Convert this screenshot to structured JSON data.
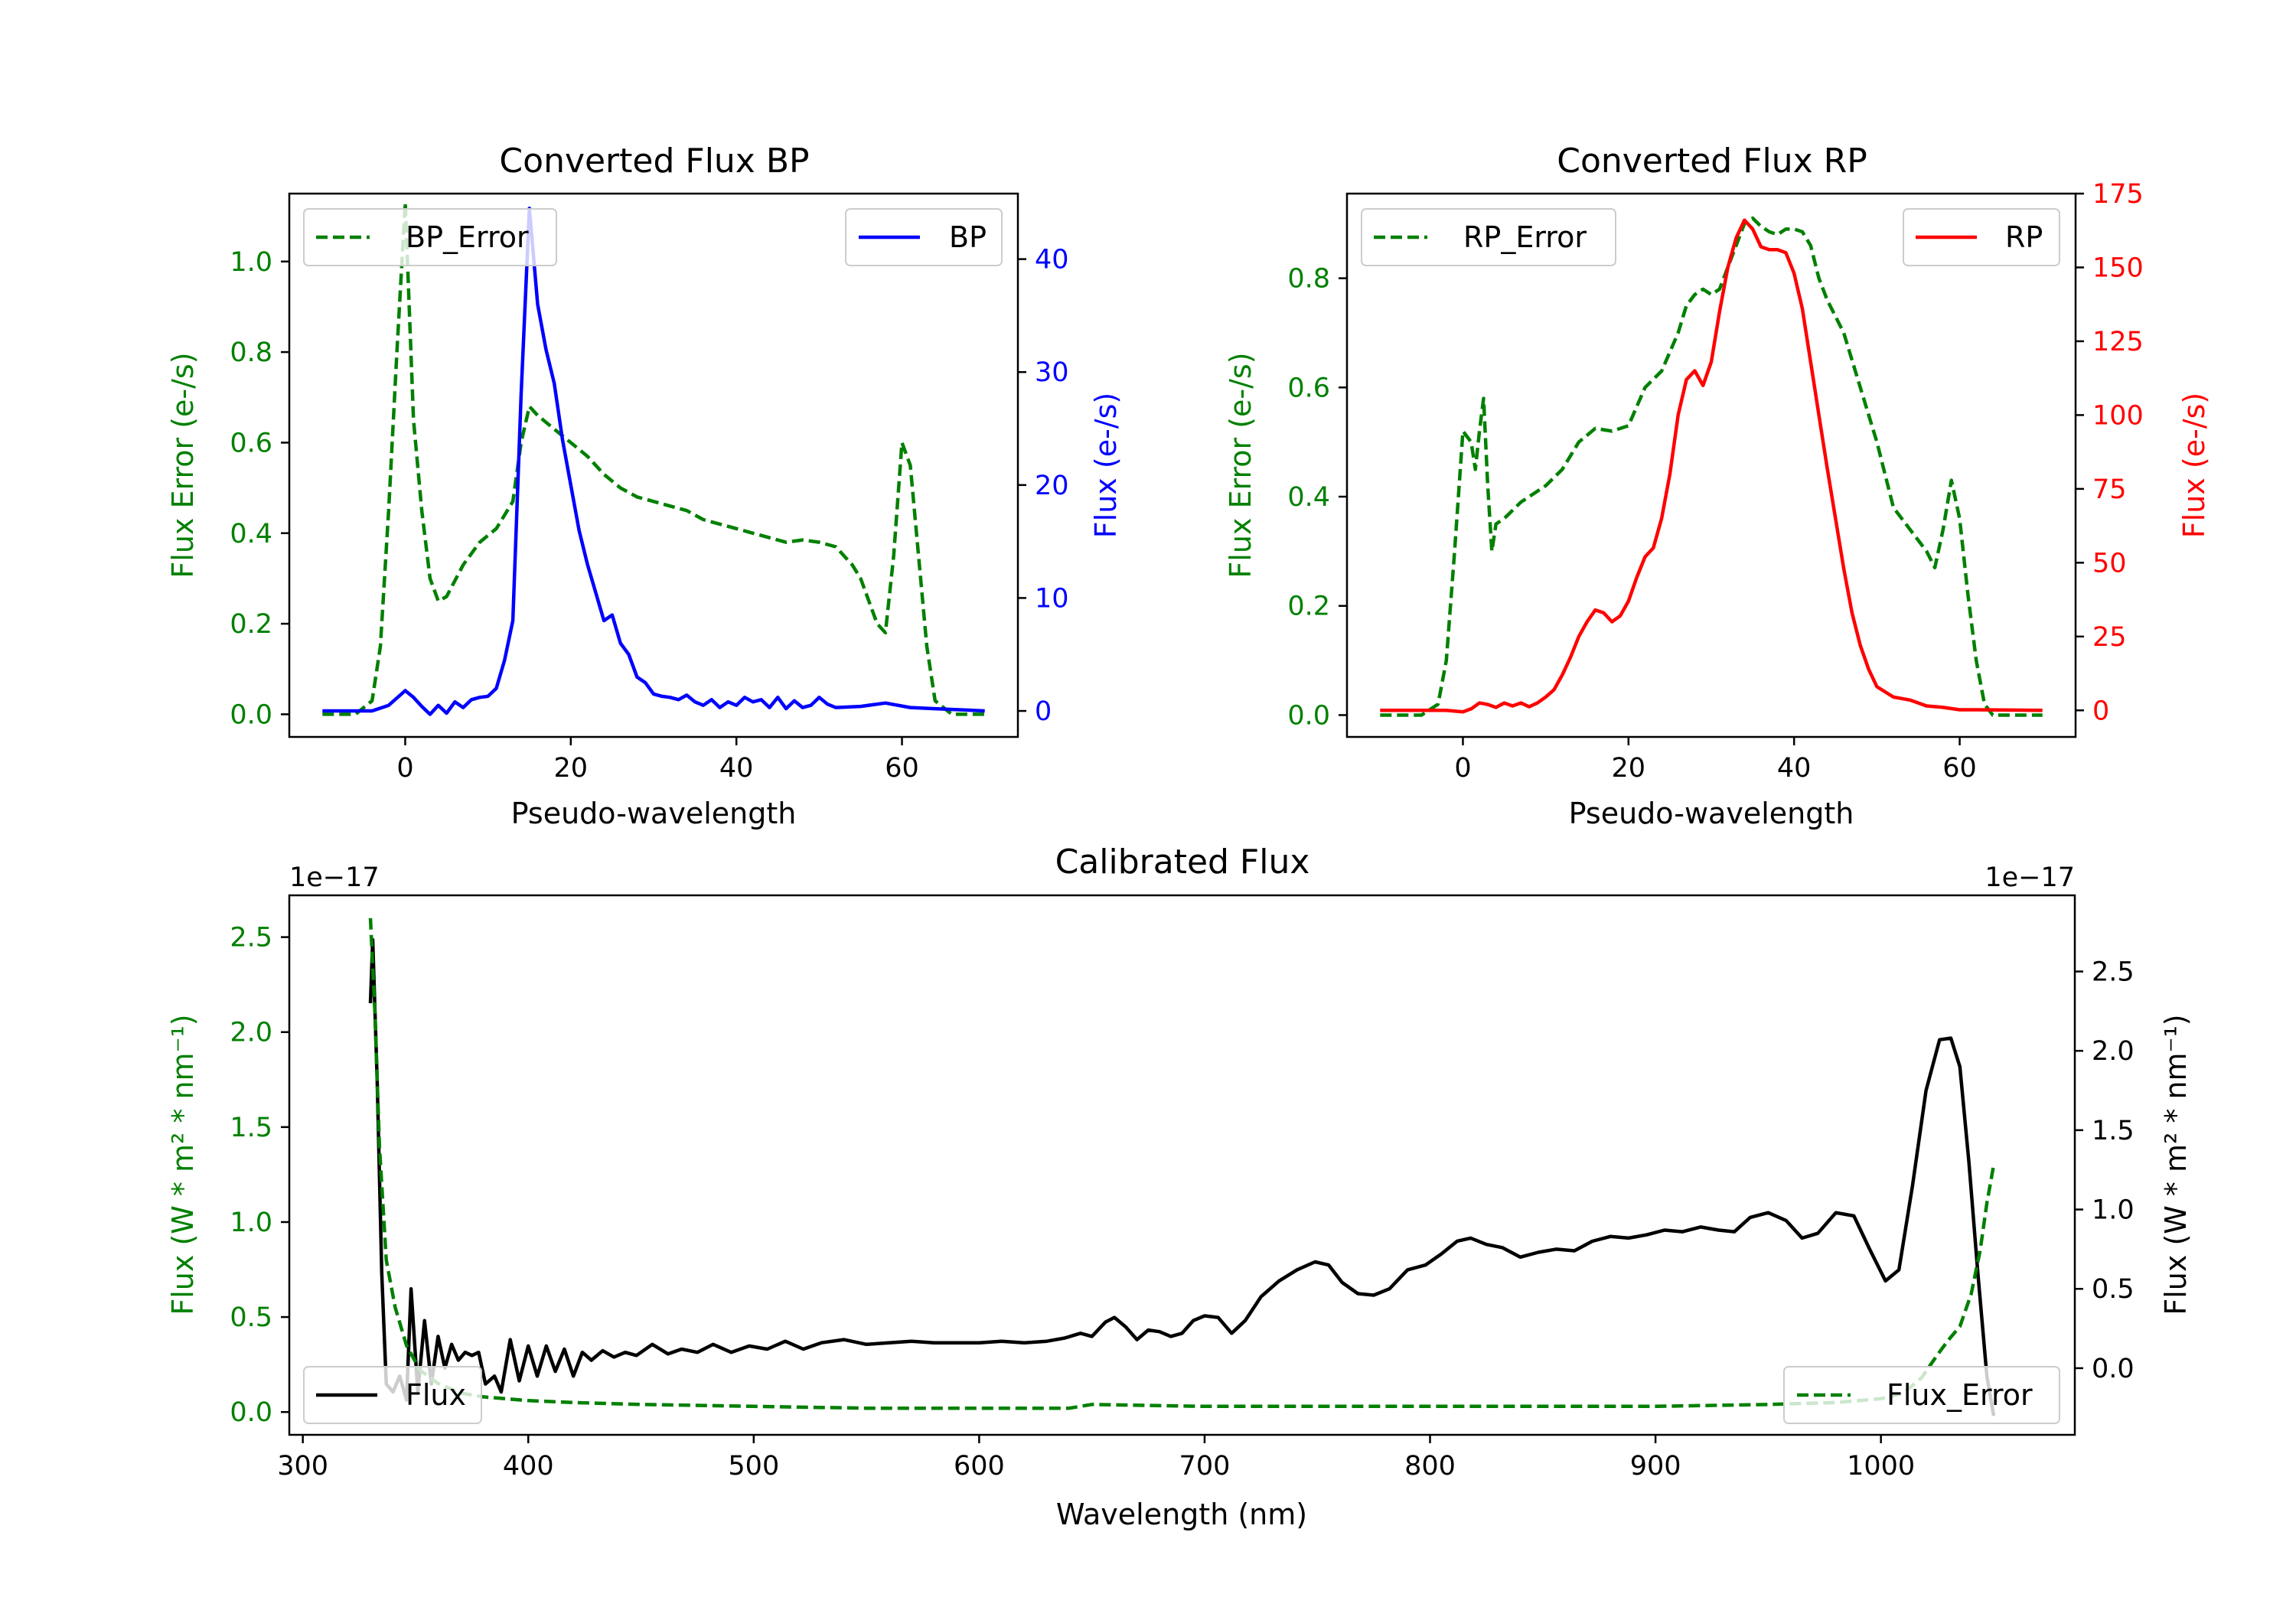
{
  "chart_data": [
    {
      "type": "line",
      "title": "Converted Flux BP",
      "xlabel": "Pseudo-wavelength",
      "xlim": [
        -14,
        74
      ],
      "xticks": [
        0,
        20,
        40,
        60
      ],
      "left_axis": {
        "label": "Flux Error (e-/s)",
        "color": "#008000",
        "ylim": [
          -0.05,
          1.15
        ],
        "ticks": [
          "0.0",
          "0.2",
          "0.4",
          "0.6",
          "0.8",
          "1.0"
        ],
        "tick_values": [
          0,
          0.2,
          0.4,
          0.6,
          0.8,
          1.0
        ]
      },
      "right_axis": {
        "label": "Flux (e-/s)",
        "color": "#0000ff",
        "ylim": [
          -2.3,
          45.8
        ],
        "ticks": [
          "0",
          "10",
          "20",
          "30",
          "40"
        ],
        "tick_values": [
          0,
          10,
          20,
          30,
          40
        ]
      },
      "series": [
        {
          "name": "BP_Error",
          "axis": "left",
          "color": "#008000",
          "style": "dashed",
          "legend": "top-left",
          "x": [
            -10,
            -6,
            -4,
            -3,
            -2,
            -1,
            0,
            1,
            2,
            3,
            4,
            5,
            7,
            9,
            11,
            13,
            14,
            15,
            16,
            18,
            20,
            22,
            24,
            26,
            28,
            30,
            32,
            34,
            36,
            38,
            40,
            42,
            44,
            46,
            48,
            50,
            52,
            54,
            55,
            56,
            57,
            58,
            59,
            60,
            61,
            62,
            63,
            64,
            66,
            70
          ],
          "y": [
            0.0,
            0.0,
            0.03,
            0.15,
            0.45,
            0.8,
            1.13,
            0.65,
            0.45,
            0.3,
            0.25,
            0.26,
            0.33,
            0.38,
            0.41,
            0.47,
            0.6,
            0.68,
            0.66,
            0.63,
            0.6,
            0.57,
            0.53,
            0.5,
            0.48,
            0.47,
            0.46,
            0.45,
            0.43,
            0.42,
            0.41,
            0.4,
            0.39,
            0.38,
            0.385,
            0.38,
            0.37,
            0.33,
            0.3,
            0.25,
            0.2,
            0.18,
            0.35,
            0.6,
            0.55,
            0.35,
            0.15,
            0.03,
            0.0,
            0.0
          ]
        },
        {
          "name": "BP",
          "axis": "right",
          "color": "#0000ff",
          "style": "solid",
          "legend": "top-right",
          "x": [
            -10,
            -4,
            -2,
            0,
            1,
            2,
            3,
            4,
            5,
            6,
            7,
            8,
            9,
            10,
            11,
            12,
            13,
            14,
            15,
            16,
            17,
            18,
            19,
            20,
            21,
            22,
            23,
            24,
            25,
            26,
            27,
            28,
            29,
            30,
            31,
            32,
            33,
            34,
            35,
            36,
            37,
            38,
            39,
            40,
            41,
            42,
            43,
            44,
            45,
            46,
            47,
            48,
            49,
            50,
            51,
            52,
            55,
            58,
            61,
            64,
            70
          ],
          "y": [
            0,
            0,
            0.5,
            1.8,
            1.2,
            0.4,
            -0.3,
            0.5,
            -0.2,
            0.8,
            0.3,
            1.0,
            1.2,
            1.3,
            2.0,
            4.5,
            8.0,
            28.0,
            44.5,
            36.0,
            32.0,
            29.0,
            24.0,
            20.0,
            16.0,
            13.0,
            10.5,
            8.0,
            8.5,
            6.0,
            5.0,
            3.0,
            2.5,
            1.5,
            1.3,
            1.2,
            1.0,
            1.4,
            0.8,
            0.5,
            1.0,
            0.3,
            0.8,
            0.5,
            1.2,
            0.8,
            1.0,
            0.3,
            1.2,
            0.2,
            0.9,
            0.3,
            0.5,
            1.2,
            0.6,
            0.3,
            0.4,
            0.7,
            0.3,
            0.2,
            0.0
          ]
        }
      ]
    },
    {
      "type": "line",
      "title": "Converted Flux RP",
      "xlabel": "Pseudo-wavelength",
      "xlim": [
        -14,
        74
      ],
      "xticks": [
        0,
        20,
        40,
        60
      ],
      "left_axis": {
        "label": "Flux Error (e-/s)",
        "color": "#008000",
        "ylim": [
          -0.04,
          0.955
        ],
        "ticks": [
          "0.0",
          "0.2",
          "0.4",
          "0.6",
          "0.8"
        ],
        "tick_values": [
          0,
          0.2,
          0.4,
          0.6,
          0.8
        ]
      },
      "right_axis": {
        "label": "Flux (e-/s)",
        "color": "#ff0000",
        "ylim": [
          -9,
          175
        ],
        "ticks": [
          "0",
          "25",
          "50",
          "75",
          "100",
          "125",
          "150",
          "175"
        ],
        "tick_values": [
          0,
          25,
          50,
          75,
          100,
          125,
          150,
          175
        ]
      },
      "series": [
        {
          "name": "RP_Error",
          "axis": "left",
          "color": "#008000",
          "style": "dashed",
          "legend": "top-left",
          "x": [
            -10,
            -5,
            -3,
            -2,
            -1,
            0,
            1,
            1.5,
            2,
            2.5,
            3,
            3.5,
            4,
            5,
            7,
            10,
            12,
            14,
            16,
            18,
            20,
            22,
            24,
            26,
            27,
            28,
            29,
            30,
            31,
            32,
            33,
            34,
            35,
            36,
            37,
            38,
            39,
            40,
            41,
            42,
            43,
            44,
            46,
            48,
            50,
            52,
            54,
            55,
            56,
            57,
            58,
            59,
            60,
            61,
            62,
            63,
            64,
            70
          ],
          "y": [
            0.0,
            0.0,
            0.02,
            0.1,
            0.3,
            0.52,
            0.5,
            0.45,
            0.52,
            0.58,
            0.42,
            0.3,
            0.35,
            0.36,
            0.39,
            0.42,
            0.45,
            0.5,
            0.525,
            0.52,
            0.53,
            0.6,
            0.63,
            0.7,
            0.75,
            0.77,
            0.78,
            0.77,
            0.78,
            0.82,
            0.86,
            0.9,
            0.91,
            0.895,
            0.885,
            0.88,
            0.89,
            0.89,
            0.885,
            0.86,
            0.8,
            0.76,
            0.7,
            0.6,
            0.5,
            0.38,
            0.34,
            0.32,
            0.3,
            0.27,
            0.34,
            0.43,
            0.36,
            0.22,
            0.1,
            0.02,
            0.0,
            0.0
          ]
        },
        {
          "name": "RP",
          "axis": "right",
          "color": "#ff0000",
          "style": "solid",
          "legend": "top-right",
          "x": [
            -10,
            -2,
            0,
            1,
            2,
            3,
            4,
            5,
            6,
            7,
            8,
            9,
            10,
            11,
            12,
            13,
            14,
            15,
            16,
            17,
            18,
            19,
            20,
            21,
            22,
            23,
            24,
            25,
            26,
            27,
            28,
            29,
            30,
            31,
            32,
            33,
            34,
            35,
            36,
            37,
            38,
            39,
            40,
            41,
            42,
            43,
            44,
            45,
            46,
            47,
            48,
            49,
            50,
            52,
            54,
            56,
            58,
            60,
            62,
            70
          ],
          "y": [
            0,
            0,
            -0.5,
            0.5,
            2.5,
            2.0,
            1.0,
            2.5,
            1.5,
            2.5,
            1.2,
            2.5,
            4.5,
            7.0,
            12,
            18,
            25,
            30,
            34,
            33,
            30,
            32,
            37,
            45,
            52,
            55,
            65,
            80,
            100,
            112,
            115,
            110,
            118,
            135,
            150,
            160,
            166,
            163,
            157,
            156,
            156,
            155,
            148,
            136,
            118,
            100,
            82,
            65,
            48,
            33,
            22,
            14,
            8,
            4.5,
            3.5,
            1.5,
            1.0,
            0.2,
            0.2,
            0.0
          ]
        }
      ]
    },
    {
      "type": "line",
      "title": "Calibrated Flux",
      "xlabel": "Wavelength (nm)",
      "xlim": [
        294,
        1086
      ],
      "xticks": [
        300,
        400,
        500,
        600,
        700,
        800,
        900,
        1000
      ],
      "left_axis": {
        "label": "Flux (W * m² * nm⁻¹)",
        "color": "#008000",
        "offset_label": "1e−17",
        "ylim": [
          -0.12,
          2.72
        ],
        "ticks": [
          "0.0",
          "0.5",
          "1.0",
          "1.5",
          "2.0",
          "2.5"
        ],
        "tick_values": [
          0,
          0.5,
          1.0,
          1.5,
          2.0,
          2.5
        ]
      },
      "right_axis": {
        "label": "Flux (W * m² * nm⁻¹)",
        "color": "#000000",
        "offset_label": "1e−17",
        "ylim": [
          -0.42,
          2.98
        ],
        "ticks": [
          "0.0",
          "0.5",
          "1.0",
          "1.5",
          "2.0",
          "2.5"
        ],
        "tick_values": [
          0,
          0.5,
          1.0,
          1.5,
          2.0,
          2.5
        ]
      },
      "series": [
        {
          "name": "Flux",
          "axis": "right",
          "color": "#000000",
          "style": "solid",
          "legend": "bottom-left",
          "x": [
            330,
            331,
            333,
            335,
            337,
            340,
            343,
            346,
            348,
            351,
            354,
            357,
            360,
            363,
            366,
            369,
            372,
            375,
            378,
            381,
            385,
            388,
            392,
            396,
            400,
            404,
            408,
            412,
            416,
            420,
            424,
            428,
            433,
            438,
            443,
            448,
            455,
            462,
            468,
            475,
            482,
            490,
            498,
            506,
            514,
            522,
            530,
            540,
            550,
            560,
            570,
            580,
            590,
            600,
            610,
            620,
            630,
            638,
            645,
            650,
            656,
            660,
            665,
            670,
            675,
            680,
            685,
            690,
            695,
            700,
            706,
            712,
            718,
            725,
            733,
            741,
            749,
            755,
            761,
            768,
            775,
            782,
            790,
            798,
            805,
            812,
            818,
            825,
            832,
            840,
            848,
            856,
            864,
            872,
            880,
            888,
            896,
            904,
            912,
            920,
            928,
            935,
            942,
            950,
            958,
            965,
            972,
            980,
            988,
            995,
            1002,
            1008,
            1014,
            1020,
            1026,
            1031,
            1035,
            1039,
            1043,
            1047,
            1050
          ],
          "y": [
            2.3,
            2.7,
            1.8,
            0.6,
            -0.1,
            -0.15,
            -0.05,
            -0.2,
            0.5,
            -0.15,
            0.3,
            -0.1,
            0.2,
            0.0,
            0.15,
            0.05,
            0.1,
            0.08,
            0.1,
            -0.1,
            -0.05,
            -0.15,
            0.18,
            -0.08,
            0.14,
            -0.05,
            0.14,
            -0.02,
            0.12,
            -0.05,
            0.1,
            0.05,
            0.11,
            0.07,
            0.1,
            0.08,
            0.15,
            0.09,
            0.12,
            0.1,
            0.15,
            0.1,
            0.14,
            0.12,
            0.17,
            0.12,
            0.16,
            0.18,
            0.15,
            0.16,
            0.17,
            0.16,
            0.16,
            0.16,
            0.17,
            0.16,
            0.17,
            0.19,
            0.22,
            0.2,
            0.29,
            0.32,
            0.26,
            0.18,
            0.24,
            0.23,
            0.2,
            0.22,
            0.3,
            0.33,
            0.32,
            0.22,
            0.3,
            0.45,
            0.55,
            0.62,
            0.67,
            0.65,
            0.54,
            0.47,
            0.46,
            0.5,
            0.62,
            0.65,
            0.72,
            0.8,
            0.82,
            0.78,
            0.76,
            0.7,
            0.73,
            0.75,
            0.74,
            0.8,
            0.83,
            0.82,
            0.84,
            0.87,
            0.86,
            0.89,
            0.87,
            0.86,
            0.95,
            0.98,
            0.93,
            0.82,
            0.85,
            0.98,
            0.96,
            0.75,
            0.55,
            0.62,
            1.15,
            1.75,
            2.07,
            2.08,
            1.9,
            1.3,
            0.6,
            -0.05,
            -0.3
          ]
        },
        {
          "name": "Flux_Error",
          "axis": "left",
          "color": "#008000",
          "style": "dashed",
          "legend": "bottom-right",
          "x": [
            330,
            332,
            334,
            337,
            341,
            346,
            352,
            360,
            370,
            380,
            390,
            400,
            420,
            450,
            500,
            550,
            600,
            640,
            650,
            700,
            750,
            800,
            850,
            900,
            950,
            980,
            1000,
            1010,
            1018,
            1025,
            1030,
            1035,
            1040,
            1044,
            1047,
            1050
          ],
          "y": [
            2.6,
            2.1,
            1.4,
            0.8,
            0.55,
            0.35,
            0.22,
            0.15,
            0.1,
            0.08,
            0.07,
            0.06,
            0.05,
            0.04,
            0.03,
            0.02,
            0.02,
            0.02,
            0.04,
            0.03,
            0.03,
            0.03,
            0.03,
            0.03,
            0.04,
            0.05,
            0.07,
            0.1,
            0.18,
            0.3,
            0.38,
            0.45,
            0.62,
            0.85,
            1.1,
            1.3
          ]
        }
      ]
    }
  ]
}
